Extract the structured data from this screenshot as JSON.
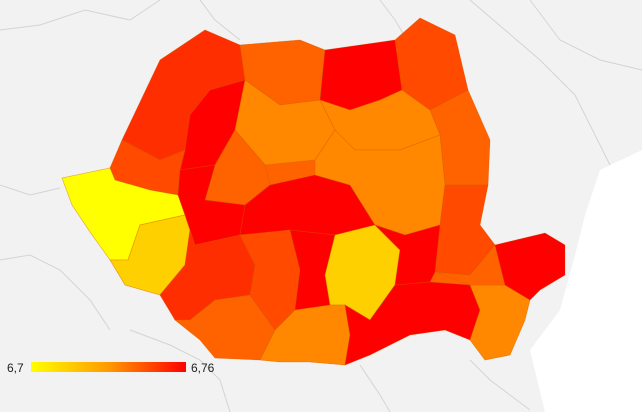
{
  "map": {
    "background_color": "#f2f2f2",
    "land_outside_color": "#ffffff",
    "border_color": "#d4d4d4"
  },
  "legend": {
    "min_label": "6,7",
    "max_label": "6,76",
    "colors": [
      "#ffff00",
      "#ff9a00",
      "#ff0000"
    ]
  },
  "palette": {
    "yellow": "#ffff00",
    "gold": "#ffd000",
    "light_orange": "#ff8800",
    "orange": "#ff6300",
    "dark_orange": "#ff4a00",
    "red_orange": "#ff2e00",
    "red": "#ff0000"
  },
  "regions": [
    {
      "name": "northwest-1",
      "color": "red_orange"
    },
    {
      "name": "north-1",
      "color": "orange"
    },
    {
      "name": "north-2",
      "color": "red"
    },
    {
      "name": "northeast-1",
      "color": "dark_orange"
    },
    {
      "name": "northeast-2",
      "color": "orange"
    },
    {
      "name": "west-1",
      "color": "red"
    },
    {
      "name": "west-2",
      "color": "dark_orange"
    },
    {
      "name": "west-yellow",
      "color": "yellow"
    },
    {
      "name": "west-gold",
      "color": "gold"
    },
    {
      "name": "center-1",
      "color": "light_orange"
    },
    {
      "name": "center-2",
      "color": "orange"
    },
    {
      "name": "center-3",
      "color": "red"
    },
    {
      "name": "center-4",
      "color": "red"
    },
    {
      "name": "east-1",
      "color": "light_orange"
    },
    {
      "name": "east-2",
      "color": "light_orange"
    },
    {
      "name": "east-3",
      "color": "dark_orange"
    },
    {
      "name": "south-west-1",
      "color": "red_orange"
    },
    {
      "name": "south-west-2",
      "color": "orange"
    },
    {
      "name": "south-1",
      "color": "dark_orange"
    },
    {
      "name": "south-2",
      "color": "red"
    },
    {
      "name": "south-gold",
      "color": "gold"
    },
    {
      "name": "south-3",
      "color": "light_orange"
    },
    {
      "name": "south-4",
      "color": "red"
    },
    {
      "name": "southeast-1",
      "color": "red"
    },
    {
      "name": "southeast-2",
      "color": "light_orange"
    },
    {
      "name": "southeast-3",
      "color": "orange"
    },
    {
      "name": "east-red",
      "color": "red"
    }
  ]
}
